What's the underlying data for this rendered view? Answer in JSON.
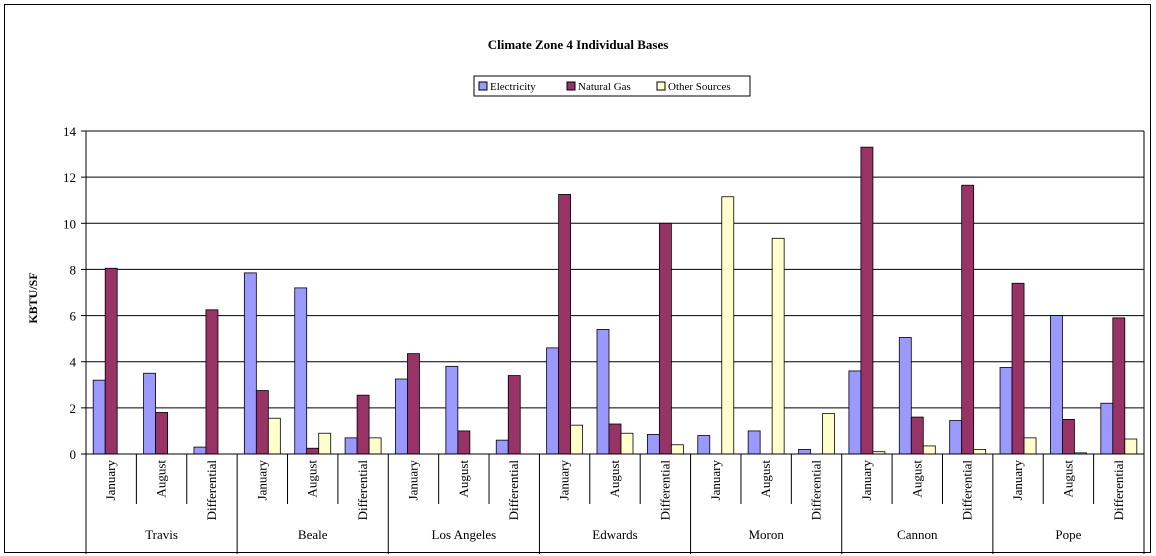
{
  "chart_data": {
    "type": "bar",
    "title": "Climate Zone 4 Individual Bases",
    "xlabel": "",
    "ylabel": "KBTU/SF",
    "ylim": [
      0,
      14
    ],
    "yticks": [
      0,
      2,
      4,
      6,
      8,
      10,
      12,
      14
    ],
    "grid": true,
    "legend_position": "top-center",
    "groups": [
      "Travis",
      "Beale",
      "Los Angeles",
      "Edwards",
      "Moron",
      "Cannon",
      "Pope"
    ],
    "categories": [
      "January",
      "August",
      "Differential",
      "January",
      "August",
      "Differential",
      "January",
      "August",
      "Differential",
      "January",
      "August",
      "Differential",
      "January",
      "August",
      "Differential",
      "January",
      "August",
      "Differential",
      "January",
      "August",
      "Differential"
    ],
    "series": [
      {
        "name": "Electricity",
        "color": "#9999ff",
        "values": [
          3.2,
          3.5,
          0.3,
          7.85,
          7.2,
          0.7,
          3.25,
          3.8,
          0.6,
          4.6,
          5.4,
          0.85,
          0.8,
          1.0,
          0.2,
          3.6,
          5.05,
          1.45,
          3.75,
          6.0,
          2.2
        ]
      },
      {
        "name": "Natural Gas",
        "color": "#993366",
        "values": [
          8.05,
          1.8,
          6.25,
          2.75,
          0.25,
          2.55,
          4.35,
          1.0,
          3.4,
          11.25,
          1.3,
          10.0,
          0,
          0,
          0,
          13.3,
          1.6,
          11.65,
          7.4,
          1.5,
          5.9
        ]
      },
      {
        "name": "Other Sources",
        "color": "#ffffcc",
        "values": [
          0,
          0,
          0,
          1.55,
          0.9,
          0.7,
          0,
          0,
          0,
          1.25,
          0.9,
          0.4,
          11.15,
          9.35,
          1.75,
          0.1,
          0.35,
          0.2,
          0.7,
          0.05,
          0.65
        ]
      }
    ]
  }
}
